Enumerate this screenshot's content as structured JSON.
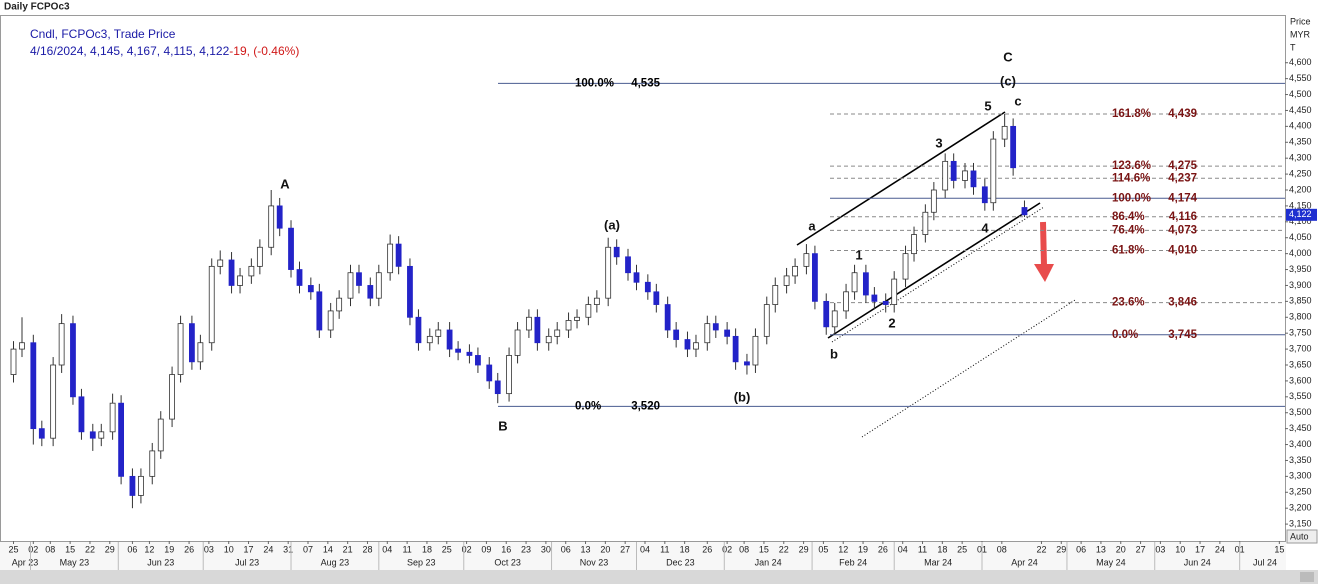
{
  "chart_data": {
    "type": "candlestick",
    "title": "Daily FCPOc3",
    "legend_title": "Cndl, FCPOc3, Trade Price",
    "legend_values": "4/16/2024, 4,145, 4,167, 4,115, 4,122",
    "legend_change": "-19, (-0.46%)",
    "y_axis_title": "Price",
    "y_axis_unit": "MYR",
    "y_axis_note": "T",
    "auto_label": "Auto",
    "up_color": "#ffffff",
    "down_color": "#2323c8",
    "last_price": {
      "value": 4122,
      "label": "4,122"
    },
    "x": [
      "2023-04-25",
      "2023-04-28",
      "2023-05-02",
      "2023-05-05",
      "2023-05-09",
      "2023-05-12",
      "2023-05-16",
      "2023-05-19",
      "2023-05-23",
      "2023-05-26",
      "2023-05-30",
      "2023-06-02",
      "2023-06-06",
      "2023-06-09",
      "2023-06-13",
      "2023-06-16",
      "2023-06-20",
      "2023-06-23",
      "2023-06-27",
      "2023-06-30",
      "2023-07-04",
      "2023-07-07",
      "2023-07-11",
      "2023-07-14",
      "2023-07-18",
      "2023-07-21",
      "2023-07-25",
      "2023-07-28",
      "2023-08-01",
      "2023-08-04",
      "2023-08-08",
      "2023-08-11",
      "2023-08-15",
      "2023-08-18",
      "2023-08-22",
      "2023-08-25",
      "2023-08-29",
      "2023-09-01",
      "2023-09-05",
      "2023-09-08",
      "2023-09-12",
      "2023-09-15",
      "2023-09-19",
      "2023-09-22",
      "2023-09-26",
      "2023-09-29",
      "2023-10-03",
      "2023-10-06",
      "2023-10-10",
      "2023-10-13",
      "2023-10-17",
      "2023-10-20",
      "2023-10-24",
      "2023-10-27",
      "2023-10-31",
      "2023-11-03",
      "2023-11-07",
      "2023-11-10",
      "2023-11-14",
      "2023-11-17",
      "2023-11-21",
      "2023-11-24",
      "2023-11-28",
      "2023-12-01",
      "2023-12-05",
      "2023-12-08",
      "2023-12-12",
      "2023-12-15",
      "2023-12-19",
      "2023-12-22",
      "2023-12-26",
      "2023-12-29",
      "2024-01-02",
      "2024-01-05",
      "2024-01-09",
      "2024-01-12",
      "2024-01-16",
      "2024-01-19",
      "2024-01-23",
      "2024-01-26",
      "2024-01-30",
      "2024-02-02",
      "2024-02-06",
      "2024-02-09",
      "2024-02-13",
      "2024-02-16",
      "2024-02-20",
      "2024-02-23",
      "2024-02-27",
      "2024-03-01",
      "2024-03-05",
      "2024-03-08",
      "2024-03-12",
      "2024-03-15",
      "2024-03-19",
      "2024-03-22",
      "2024-03-26",
      "2024-03-29",
      "2024-04-02",
      "2024-04-05",
      "2024-04-09",
      "2024-04-12",
      "2024-04-16"
    ],
    "open": [
      3620,
      3700,
      3720,
      3450,
      3420,
      3650,
      3780,
      3550,
      3440,
      3420,
      3440,
      3530,
      3300,
      3240,
      3300,
      3380,
      3480,
      3620,
      3780,
      3660,
      3720,
      3960,
      3980,
      3900,
      3930,
      3960,
      4020,
      4150,
      4080,
      3950,
      3900,
      3880,
      3760,
      3820,
      3860,
      3940,
      3900,
      3860,
      3940,
      4030,
      3960,
      3800,
      3720,
      3740,
      3760,
      3700,
      3690,
      3680,
      3650,
      3600,
      3560,
      3680,
      3760,
      3800,
      3720,
      3740,
      3760,
      3790,
      3800,
      3840,
      3860,
      4020,
      3990,
      3940,
      3910,
      3880,
      3840,
      3760,
      3730,
      3700,
      3720,
      3780,
      3760,
      3740,
      3660,
      3650,
      3740,
      3840,
      3900,
      3930,
      3960,
      4000,
      3850,
      3770,
      3820,
      3880,
      3940,
      3870,
      3850,
      3840,
      3920,
      4000,
      4060,
      4130,
      4200,
      4290,
      4230,
      4260,
      4210,
      4160,
      4360,
      4400,
      4145
    ],
    "high": [
      3725,
      3800,
      3745,
      3475,
      3675,
      3810,
      3805,
      3575,
      3465,
      3465,
      3560,
      3555,
      3325,
      3325,
      3405,
      3505,
      3645,
      3805,
      3805,
      3745,
      3985,
      4010,
      4005,
      3955,
      3985,
      4045,
      4200,
      4175,
      4105,
      3975,
      3925,
      3905,
      3845,
      3885,
      3965,
      3965,
      3925,
      3965,
      4060,
      4055,
      3985,
      3825,
      3765,
      3785,
      3785,
      3725,
      3715,
      3705,
      3675,
      3625,
      3705,
      3785,
      3825,
      3825,
      3765,
      3785,
      3815,
      3825,
      3865,
      3885,
      4050,
      4045,
      4015,
      3965,
      3935,
      3905,
      3865,
      3785,
      3755,
      3745,
      3805,
      3805,
      3785,
      3765,
      3685,
      3765,
      3865,
      3925,
      3955,
      3985,
      4030,
      4025,
      3875,
      3845,
      3905,
      3965,
      3965,
      3895,
      3875,
      3945,
      4025,
      4085,
      4155,
      4225,
      4315,
      4315,
      4285,
      4285,
      4235,
      4385,
      4439,
      4425,
      4167
    ],
    "low": [
      3595,
      3675,
      3400,
      3395,
      3395,
      3625,
      3525,
      3415,
      3380,
      3395,
      3415,
      3275,
      3200,
      3215,
      3275,
      3355,
      3455,
      3595,
      3635,
      3635,
      3695,
      3935,
      3875,
      3875,
      3905,
      3935,
      3995,
      4055,
      3925,
      3875,
      3855,
      3735,
      3735,
      3795,
      3835,
      3875,
      3835,
      3835,
      3915,
      3935,
      3775,
      3695,
      3695,
      3715,
      3675,
      3665,
      3655,
      3625,
      3575,
      3530,
      3535,
      3655,
      3735,
      3695,
      3695,
      3715,
      3735,
      3765,
      3775,
      3815,
      3835,
      3965,
      3915,
      3885,
      3855,
      3815,
      3735,
      3705,
      3675,
      3675,
      3695,
      3735,
      3715,
      3635,
      3620,
      3625,
      3715,
      3815,
      3875,
      3905,
      3935,
      3825,
      3745,
      3745,
      3795,
      3855,
      3845,
      3825,
      3815,
      3815,
      3895,
      3975,
      4035,
      4105,
      4175,
      4205,
      4205,
      4185,
      4135,
      4135,
      4335,
      4245,
      4115
    ],
    "close": [
      3700,
      3720,
      3450,
      3420,
      3650,
      3780,
      3550,
      3440,
      3420,
      3440,
      3530,
      3300,
      3240,
      3300,
      3380,
      3480,
      3620,
      3780,
      3660,
      3720,
      3960,
      3980,
      3900,
      3930,
      3960,
      4020,
      4150,
      4080,
      3950,
      3900,
      3880,
      3760,
      3820,
      3860,
      3940,
      3900,
      3860,
      3940,
      4030,
      3960,
      3800,
      3720,
      3740,
      3760,
      3700,
      3690,
      3680,
      3650,
      3600,
      3560,
      3680,
      3760,
      3800,
      3720,
      3740,
      3760,
      3790,
      3800,
      3840,
      3860,
      4020,
      3990,
      3940,
      3910,
      3880,
      3840,
      3760,
      3730,
      3700,
      3720,
      3780,
      3760,
      3740,
      3660,
      3650,
      3740,
      3840,
      3900,
      3930,
      3960,
      4000,
      3850,
      3770,
      3820,
      3880,
      3940,
      3870,
      3850,
      3840,
      3920,
      4000,
      4060,
      4130,
      4200,
      4290,
      4230,
      4260,
      4210,
      4160,
      4360,
      4400,
      4270,
      4122
    ],
    "xlim": [
      "2023-04-22",
      "2024-07-17"
    ],
    "ylim": [
      3100,
      4750
    ],
    "yticks": [
      {
        "value": 3150,
        "label": "3,150"
      },
      {
        "value": 3200,
        "label": "3,200"
      },
      {
        "value": 3250,
        "label": "3,250"
      },
      {
        "value": 3300,
        "label": "3,300"
      },
      {
        "value": 3350,
        "label": "3,350"
      },
      {
        "value": 3400,
        "label": "3,400"
      },
      {
        "value": 3450,
        "label": "3,450"
      },
      {
        "value": 3500,
        "label": "3,500"
      },
      {
        "value": 3550,
        "label": "3,550"
      },
      {
        "value": 3600,
        "label": "3,600"
      },
      {
        "value": 3650,
        "label": "3,650"
      },
      {
        "value": 3700,
        "label": "3,700"
      },
      {
        "value": 3750,
        "label": "3,750"
      },
      {
        "value": 3800,
        "label": "3,800"
      },
      {
        "value": 3850,
        "label": "3,850"
      },
      {
        "value": 3900,
        "label": "3,900"
      },
      {
        "value": 3950,
        "label": "3,950"
      },
      {
        "value": 4000,
        "label": "4,000"
      },
      {
        "value": 4050,
        "label": "4,050"
      },
      {
        "value": 4100,
        "label": "4,100"
      },
      {
        "value": 4150,
        "label": "4,150"
      },
      {
        "value": 4200,
        "label": "4,200"
      },
      {
        "value": 4250,
        "label": "4,250"
      },
      {
        "value": 4300,
        "label": "4,300"
      },
      {
        "value": 4350,
        "label": "4,350"
      },
      {
        "value": 4400,
        "label": "4,400"
      },
      {
        "value": 4450,
        "label": "4,450"
      },
      {
        "value": 4500,
        "label": "4,500"
      },
      {
        "value": 4550,
        "label": "4,550"
      },
      {
        "value": 4600,
        "label": "4,600"
      }
    ],
    "xticks": [
      {
        "value": "2023-04-25",
        "label": "25"
      },
      {
        "value": "2023-05-02",
        "label": "02"
      },
      {
        "value": "2023-05-08",
        "label": "08"
      },
      {
        "value": "2023-05-15",
        "label": "15"
      },
      {
        "value": "2023-05-22",
        "label": "22"
      },
      {
        "value": "2023-05-29",
        "label": "29"
      },
      {
        "value": "2023-06-06",
        "label": "06"
      },
      {
        "value": "2023-06-12",
        "label": "12"
      },
      {
        "value": "2023-06-19",
        "label": "19"
      },
      {
        "value": "2023-06-26",
        "label": "26"
      },
      {
        "value": "2023-07-03",
        "label": "03"
      },
      {
        "value": "2023-07-10",
        "label": "10"
      },
      {
        "value": "2023-07-17",
        "label": "17"
      },
      {
        "value": "2023-07-24",
        "label": "24"
      },
      {
        "value": "2023-07-31",
        "label": "31"
      },
      {
        "value": "2023-08-07",
        "label": "07"
      },
      {
        "value": "2023-08-14",
        "label": "14"
      },
      {
        "value": "2023-08-21",
        "label": "21"
      },
      {
        "value": "2023-08-28",
        "label": "28"
      },
      {
        "value": "2023-09-04",
        "label": "04"
      },
      {
        "value": "2023-09-11",
        "label": "11"
      },
      {
        "value": "2023-09-18",
        "label": "18"
      },
      {
        "value": "2023-09-25",
        "label": "25"
      },
      {
        "value": "2023-10-02",
        "label": "02"
      },
      {
        "value": "2023-10-09",
        "label": "09"
      },
      {
        "value": "2023-10-16",
        "label": "16"
      },
      {
        "value": "2023-10-23",
        "label": "23"
      },
      {
        "value": "2023-10-30",
        "label": "30"
      },
      {
        "value": "2023-11-06",
        "label": "06"
      },
      {
        "value": "2023-11-13",
        "label": "13"
      },
      {
        "value": "2023-11-20",
        "label": "20"
      },
      {
        "value": "2023-11-27",
        "label": "27"
      },
      {
        "value": "2023-12-04",
        "label": "04"
      },
      {
        "value": "2023-12-11",
        "label": "11"
      },
      {
        "value": "2023-12-18",
        "label": "18"
      },
      {
        "value": "2023-12-26",
        "label": "26"
      },
      {
        "value": "2024-01-02",
        "label": "02"
      },
      {
        "value": "2024-01-08",
        "label": "08"
      },
      {
        "value": "2024-01-15",
        "label": "15"
      },
      {
        "value": "2024-01-22",
        "label": "22"
      },
      {
        "value": "2024-01-29",
        "label": "29"
      },
      {
        "value": "2024-02-05",
        "label": "05"
      },
      {
        "value": "2024-02-12",
        "label": "12"
      },
      {
        "value": "2024-02-19",
        "label": "19"
      },
      {
        "value": "2024-02-26",
        "label": "26"
      },
      {
        "value": "2024-03-04",
        "label": "04"
      },
      {
        "value": "2024-03-11",
        "label": "11"
      },
      {
        "value": "2024-03-18",
        "label": "18"
      },
      {
        "value": "2024-03-25",
        "label": "25"
      },
      {
        "value": "2024-04-01",
        "label": "01"
      },
      {
        "value": "2024-04-08",
        "label": "08"
      },
      {
        "value": "2024-04-22",
        "label": "22"
      },
      {
        "value": "2024-04-29",
        "label": "29"
      },
      {
        "value": "2024-05-06",
        "label": "06"
      },
      {
        "value": "2024-05-13",
        "label": "13"
      },
      {
        "value": "2024-05-20",
        "label": "20"
      },
      {
        "value": "2024-05-27",
        "label": "27"
      },
      {
        "value": "2024-06-03",
        "label": "03"
      },
      {
        "value": "2024-06-10",
        "label": "10"
      },
      {
        "value": "2024-06-17",
        "label": "17"
      },
      {
        "value": "2024-06-24",
        "label": "24"
      },
      {
        "value": "2024-07-01",
        "label": "01"
      },
      {
        "value": "2024-07-15",
        "label": "15"
      }
    ],
    "month_labels": [
      {
        "value": "2023-04",
        "label": "Apr 23"
      },
      {
        "value": "2023-05",
        "label": "May 23"
      },
      {
        "value": "2023-06",
        "label": "Jun 23"
      },
      {
        "value": "2023-07",
        "label": "Jul 23"
      },
      {
        "value": "2023-08",
        "label": "Aug 23"
      },
      {
        "value": "2023-09",
        "label": "Sep 23"
      },
      {
        "value": "2023-10",
        "label": "Oct 23"
      },
      {
        "value": "2023-11",
        "label": "Nov 23"
      },
      {
        "value": "2023-12",
        "label": "Dec 23"
      },
      {
        "value": "2024-01",
        "label": "Jan 24"
      },
      {
        "value": "2024-02",
        "label": "Feb 24"
      },
      {
        "value": "2024-03",
        "label": "Mar 24"
      },
      {
        "value": "2024-04",
        "label": "Apr 24"
      },
      {
        "value": "2024-05",
        "label": "May 24"
      },
      {
        "value": "2024-06",
        "label": "Jun 24"
      },
      {
        "value": "2024-07",
        "label": "Jul 24"
      }
    ],
    "fib_sets": [
      {
        "color": "#000000",
        "levels": [
          {
            "value": 4535,
            "percent": "100.0%",
            "label": "4,535",
            "style": "solid"
          },
          {
            "value": 3520,
            "percent": "0.0%",
            "label": "3,520",
            "style": "solid"
          }
        ]
      },
      {
        "color": "#7a1414",
        "levels": [
          {
            "value": 4439,
            "percent": "161.8%",
            "label": "4,439",
            "style": "dashed"
          },
          {
            "value": 4275,
            "percent": "123.6%",
            "label": "4,275",
            "style": "dashed"
          },
          {
            "value": 4237,
            "percent": "114.6%",
            "label": "4,237",
            "style": "dashed"
          },
          {
            "value": 4174,
            "percent": "100.0%",
            "label": "4,174",
            "style": "solid"
          },
          {
            "value": 4116,
            "percent": "86.4%",
            "label": "4,116",
            "style": "dashed"
          },
          {
            "value": 4073,
            "percent": "76.4%",
            "label": "4,073",
            "style": "dashed"
          },
          {
            "value": 4010,
            "percent": "61.8%",
            "label": "4,010",
            "style": "dashed"
          },
          {
            "value": 3846,
            "percent": "23.6%",
            "label": "3,846",
            "style": "dashed"
          },
          {
            "value": 3745,
            "percent": "0.0%",
            "label": "3,745",
            "style": "solid"
          }
        ]
      }
    ],
    "wave_labels": [
      "A",
      "B",
      "C",
      "(a)",
      "(b)",
      "(c)",
      "a",
      "b",
      "c",
      "1",
      "2",
      "3",
      "4",
      "5"
    ]
  }
}
